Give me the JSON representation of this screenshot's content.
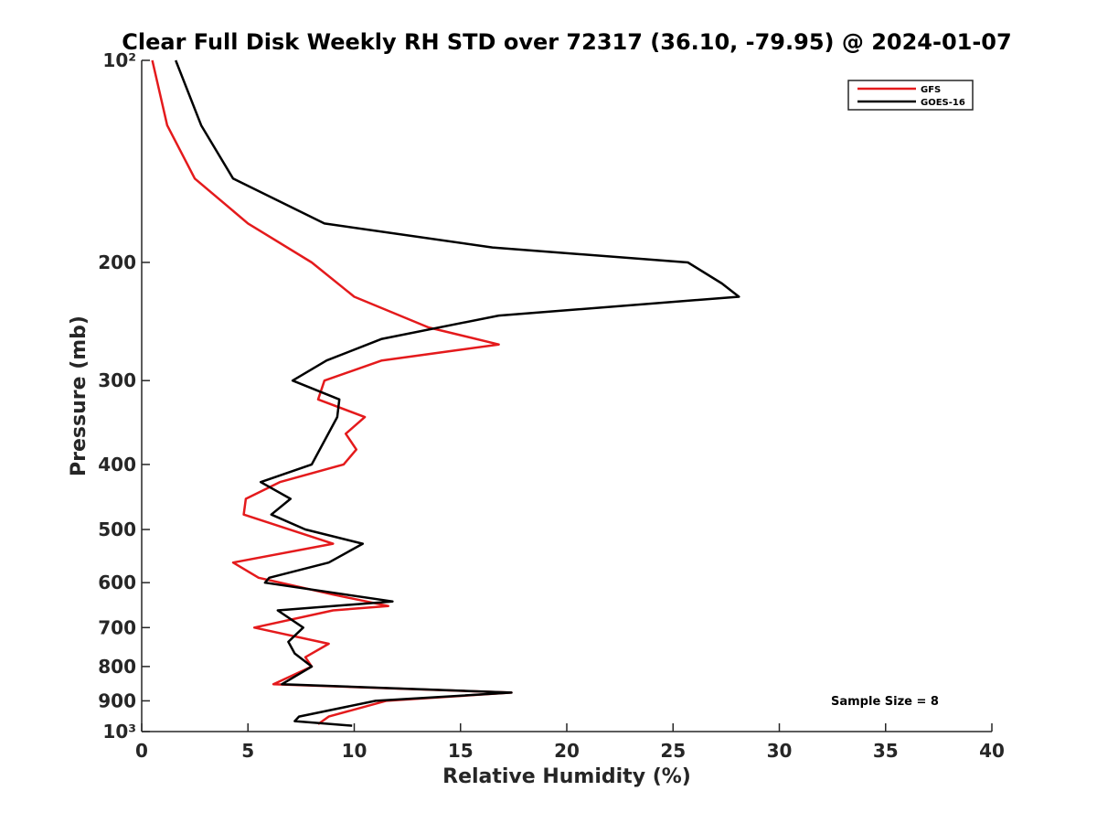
{
  "chart_data": {
    "type": "line",
    "title": "Clear Full Disk Weekly RH STD over 72317 (36.10, -79.95) @ 2024-01-07",
    "xlabel": "Relative Humidity (%)",
    "ylabel": "Pressure (mb)",
    "xlim": [
      0,
      40
    ],
    "ylim": [
      100,
      1000
    ],
    "y_scale": "log",
    "y_reversed": true,
    "x_ticks": [
      0,
      5,
      10,
      15,
      20,
      25,
      30,
      35,
      40
    ],
    "x_tick_labels": [
      "0",
      "5",
      "10",
      "15",
      "20",
      "25",
      "30",
      "35",
      "40"
    ],
    "y_ticks": [
      100,
      200,
      300,
      400,
      500,
      600,
      700,
      800,
      900,
      1000
    ],
    "y_tick_labels": [
      "10²",
      "200",
      "300",
      "400",
      "500",
      "600",
      "700",
      "800",
      "900",
      "10³"
    ],
    "grid": false,
    "legend_position": "top-right",
    "annotation": "Sample Size = 8",
    "series": [
      {
        "name": "GFS",
        "color": "#e41a1c",
        "points": [
          [
            0.5,
            100
          ],
          [
            1.2,
            125
          ],
          [
            2.5,
            150
          ],
          [
            5.0,
            175
          ],
          [
            8.0,
            200
          ],
          [
            10.0,
            225
          ],
          [
            13.5,
            250
          ],
          [
            16.8,
            265
          ],
          [
            11.3,
            280
          ],
          [
            8.6,
            300
          ],
          [
            8.3,
            320
          ],
          [
            10.5,
            340
          ],
          [
            9.6,
            360
          ],
          [
            10.1,
            380
          ],
          [
            9.5,
            400
          ],
          [
            6.5,
            425
          ],
          [
            4.9,
            450
          ],
          [
            4.8,
            475
          ],
          [
            9.0,
            525
          ],
          [
            4.3,
            560
          ],
          [
            5.5,
            590
          ],
          [
            9.0,
            625
          ],
          [
            11.6,
            650
          ],
          [
            9.0,
            660
          ],
          [
            5.3,
            700
          ],
          [
            8.8,
            740
          ],
          [
            7.7,
            775
          ],
          [
            8.0,
            800
          ],
          [
            6.2,
            850
          ],
          [
            17.4,
            875
          ],
          [
            11.5,
            900
          ],
          [
            8.8,
            950
          ],
          [
            8.3,
            975
          ]
        ]
      },
      {
        "name": "GOES-16",
        "color": "#000000",
        "points": [
          [
            1.6,
            100
          ],
          [
            2.8,
            125
          ],
          [
            4.3,
            150
          ],
          [
            8.6,
            175
          ],
          [
            16.5,
            190
          ],
          [
            25.7,
            200
          ],
          [
            27.3,
            215
          ],
          [
            28.1,
            225
          ],
          [
            16.8,
            240
          ],
          [
            11.3,
            260
          ],
          [
            8.7,
            280
          ],
          [
            7.1,
            300
          ],
          [
            9.3,
            320
          ],
          [
            9.2,
            340
          ],
          [
            8.0,
            400
          ],
          [
            5.6,
            425
          ],
          [
            7.0,
            450
          ],
          [
            6.1,
            475
          ],
          [
            7.7,
            500
          ],
          [
            10.4,
            525
          ],
          [
            8.8,
            560
          ],
          [
            6.0,
            590
          ],
          [
            5.8,
            600
          ],
          [
            11.8,
            640
          ],
          [
            6.4,
            660
          ],
          [
            7.6,
            700
          ],
          [
            6.9,
            735
          ],
          [
            7.2,
            765
          ],
          [
            8.0,
            800
          ],
          [
            6.6,
            850
          ],
          [
            17.4,
            875
          ],
          [
            11.0,
            900
          ],
          [
            7.4,
            950
          ],
          [
            7.2,
            965
          ],
          [
            9.9,
            980
          ]
        ]
      }
    ]
  }
}
